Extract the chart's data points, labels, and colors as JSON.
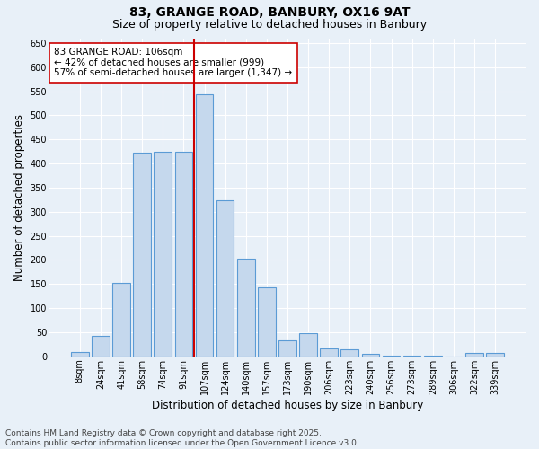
{
  "title_line1": "83, GRANGE ROAD, BANBURY, OX16 9AT",
  "title_line2": "Size of property relative to detached houses in Banbury",
  "xlabel": "Distribution of detached houses by size in Banbury",
  "ylabel": "Number of detached properties",
  "categories": [
    "8sqm",
    "24sqm",
    "41sqm",
    "58sqm",
    "74sqm",
    "91sqm",
    "107sqm",
    "124sqm",
    "140sqm",
    "157sqm",
    "173sqm",
    "190sqm",
    "206sqm",
    "223sqm",
    "240sqm",
    "256sqm",
    "273sqm",
    "289sqm",
    "306sqm",
    "322sqm",
    "339sqm"
  ],
  "values": [
    8,
    43,
    153,
    422,
    424,
    424,
    543,
    323,
    203,
    143,
    33,
    48,
    16,
    14,
    5,
    2,
    1,
    1,
    0,
    7,
    7
  ],
  "bar_color": "#c5d8ed",
  "bar_edge_color": "#5b9bd5",
  "vline_x_index": 6,
  "vline_color": "#cc0000",
  "annotation_text": "83 GRANGE ROAD: 106sqm\n← 42% of detached houses are smaller (999)\n57% of semi-detached houses are larger (1,347) →",
  "annotation_box_color": "#ffffff",
  "annotation_box_edge": "#cc0000",
  "ylim": [
    0,
    660
  ],
  "yticks": [
    0,
    50,
    100,
    150,
    200,
    250,
    300,
    350,
    400,
    450,
    500,
    550,
    600,
    650
  ],
  "background_color": "#e8f0f8",
  "plot_bg_color": "#e8f0f8",
  "footer_line1": "Contains HM Land Registry data © Crown copyright and database right 2025.",
  "footer_line2": "Contains public sector information licensed under the Open Government Licence v3.0.",
  "title_fontsize": 10,
  "subtitle_fontsize": 9,
  "axis_label_fontsize": 8.5,
  "tick_fontsize": 7,
  "annotation_fontsize": 7.5,
  "footer_fontsize": 6.5
}
